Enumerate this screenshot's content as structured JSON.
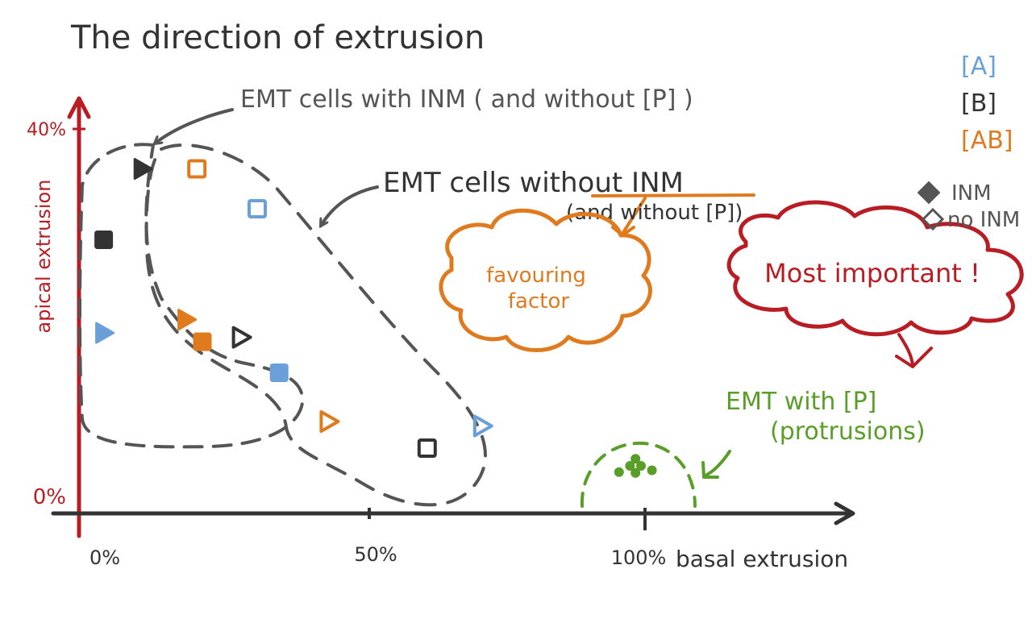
{
  "chart_data": {
    "type": "scatter",
    "title": "The direction of extrusion",
    "xlabel": "basal extrusion",
    "ylabel": "apical extrusion",
    "x_ticks": [
      "0%",
      "50%",
      "100%"
    ],
    "y_ticks": [
      "0%",
      "40%"
    ],
    "xlim": [
      0,
      100
    ],
    "ylim": [
      0,
      40
    ],
    "legend": {
      "groups": [
        {
          "label": "[A]",
          "color": "#6a9fd8"
        },
        {
          "label": "[B]",
          "color": "#333333"
        },
        {
          "label": "[AB]",
          "color": "#e07a1f"
        }
      ],
      "styles": [
        {
          "label": "INM",
          "filled": true
        },
        {
          "label": "no INM",
          "filled": false
        }
      ]
    },
    "points": [
      {
        "group": "B",
        "shape": "triangle",
        "filled": true,
        "x": 9,
        "y": 35.5
      },
      {
        "group": "AB",
        "shape": "square",
        "filled": false,
        "x": 19,
        "y": 35.5
      },
      {
        "group": "A",
        "shape": "square",
        "filled": false,
        "x": 30,
        "y": 31
      },
      {
        "group": "B",
        "shape": "square",
        "filled": true,
        "x": 2,
        "y": 27.5
      },
      {
        "group": "A",
        "shape": "triangle",
        "filled": true,
        "x": 2,
        "y": 17
      },
      {
        "group": "AB",
        "shape": "triangle",
        "filled": true,
        "x": 17,
        "y": 18.5
      },
      {
        "group": "AB",
        "shape": "square",
        "filled": true,
        "x": 20,
        "y": 16
      },
      {
        "group": "B",
        "shape": "triangle",
        "filled": false,
        "x": 27,
        "y": 16.5
      },
      {
        "group": "A",
        "shape": "square",
        "filled": true,
        "x": 34,
        "y": 12.5
      },
      {
        "group": "AB",
        "shape": "triangle",
        "filled": false,
        "x": 43,
        "y": 7
      },
      {
        "group": "A",
        "shape": "triangle",
        "filled": false,
        "x": 71,
        "y": 6.5
      },
      {
        "group": "B",
        "shape": "square",
        "filled": false,
        "x": 61,
        "y": 4
      },
      {
        "group": "P",
        "shape": "dot",
        "filled": true,
        "x": 99,
        "y": 2.8
      },
      {
        "group": "P",
        "shape": "dot",
        "filled": true,
        "x": 98,
        "y": 2.0
      },
      {
        "group": "P",
        "shape": "dot",
        "filled": true,
        "x": 100,
        "y": 2.0
      },
      {
        "group": "P",
        "shape": "dot",
        "filled": true,
        "x": 96,
        "y": 1.3
      },
      {
        "group": "P",
        "shape": "dot",
        "filled": true,
        "x": 99,
        "y": 1.2
      },
      {
        "group": "P",
        "shape": "dot",
        "filled": true,
        "x": 102,
        "y": 1.5
      }
    ],
    "annotations": {
      "emt_inm": "EMT cells with INM ( and  without [P] )",
      "emt_no_inm": "EMT cells  without INM",
      "emt_no_inm_2": "(and without [P])",
      "favouring_1": "favouring",
      "favouring_2": "factor",
      "important": "Most important !",
      "emt_p_1": "EMT with [P]",
      "emt_p_2": "(protrusions)"
    }
  },
  "colors": {
    "axis": "#b81d24",
    "ink": "#333333",
    "group_A": "#6a9fd8",
    "group_B": "#333333",
    "group_AB": "#e07a1f",
    "group_P": "#5a9e2a",
    "cloud_orange": "#e07a1f",
    "cloud_red": "#b81d24",
    "dash": "#555555"
  }
}
